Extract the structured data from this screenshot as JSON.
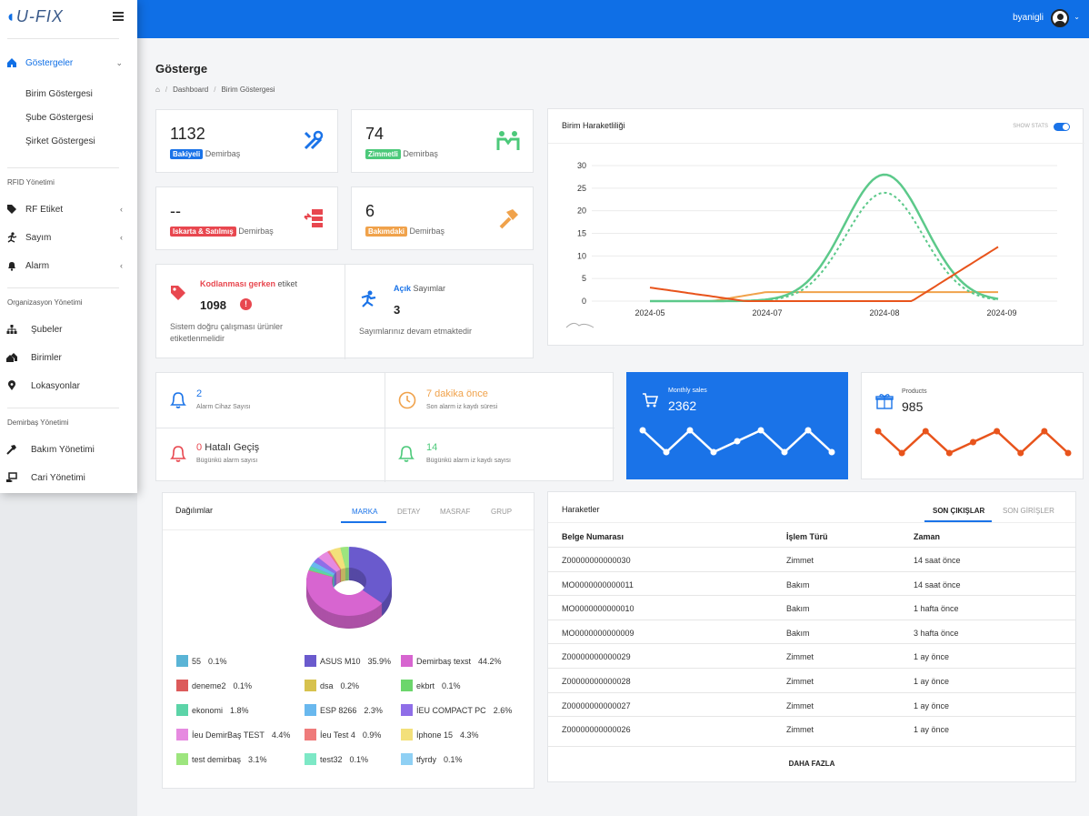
{
  "brand": "U-FIX",
  "user": {
    "name": "byanigli"
  },
  "sidebar": {
    "dashboards_label": "Göstergeler",
    "sub_items": [
      "Birim Göstergesi",
      "Şube Göstergesi",
      "Şirket Göstergesi"
    ],
    "rfid_section": "RFID Yönetimi",
    "rf_etiket": "RF Etiket",
    "sayim": "Sayım",
    "alarm": "Alarm",
    "org_section": "Organizasyon Yönetimi",
    "subeler": "Şubeler",
    "birimler": "Birimler",
    "lokasyonlar": "Lokasyonlar",
    "asset_section": "Demirbaş Yönetimi",
    "bakim": "Bakım Yönetimi",
    "cari": "Cari Yönetimi"
  },
  "page": {
    "title": "Gösterge",
    "breadcrumb": [
      "Dashboard",
      "Birim Göstergesi"
    ]
  },
  "stats": [
    {
      "value": "1132",
      "badge": "Bakiyeli",
      "suffix": "Demirbaş",
      "color": "#1a73e8"
    },
    {
      "value": "74",
      "badge": "Zimmetli",
      "suffix": "Demirbaş",
      "color": "#4cc97a"
    },
    {
      "value": "--",
      "badge": "Iskarta & Satılmış",
      "suffix": "Demirbaş",
      "color": "#e8474f"
    },
    {
      "value": "6",
      "badge": "Bakımdaki",
      "suffix": "Demirbaş",
      "color": "#f0a24b"
    }
  ],
  "kod": {
    "title_a": "Kodlanması gerken",
    "title_b": "etiket",
    "value": "1098",
    "desc": "Sistem doğru çalışması ürünler etiketlenmelidir"
  },
  "sayim": {
    "title_a": "Açık",
    "title_b": "Sayımlar",
    "value": "3",
    "desc": "Sayımlarınız devam etmaktedir"
  },
  "alarms": [
    {
      "value": "2",
      "title": "",
      "desc": "Alarm Cihaz Sayısı"
    },
    {
      "value": "7 dakika önce",
      "title": "",
      "desc": "Son alarm iz kaydı süresi"
    },
    {
      "value": "0",
      "title": "Hatalı Geçiş",
      "desc": "Bügünkü alarm sayısı"
    },
    {
      "value": "14",
      "title": "",
      "desc": "Bügünkü alarm iz kaydı sayısı"
    }
  ],
  "monthly": {
    "label": "Monthly sales",
    "value": "2362",
    "spark": [
      3,
      1,
      3,
      1,
      2,
      3,
      1,
      3,
      1
    ]
  },
  "products": {
    "label": "Products",
    "value": "985",
    "spark": [
      3,
      1,
      3,
      1,
      2,
      3,
      1,
      3,
      1
    ]
  },
  "chart_data": {
    "type": "line",
    "title": "Birim Haraketliliği",
    "toggle_label": "SHOW STATS",
    "x": [
      "2024-05",
      "2024-07",
      "2024-08",
      "2024-09"
    ],
    "ylim": [
      0,
      30
    ],
    "yticks": [
      0,
      5,
      10,
      15,
      20,
      25,
      30
    ],
    "series": [
      {
        "name": "green",
        "color": "#5cc98a",
        "peak": 28
      },
      {
        "name": "green-dotted",
        "color": "#5cc98a",
        "peak": 24
      },
      {
        "name": "red",
        "color": "#e8541c",
        "peak": 12
      },
      {
        "name": "orange",
        "color": "#f0a24b",
        "peak": 2
      }
    ]
  },
  "dist": {
    "title": "Dağılımlar",
    "tabs": [
      "MARKA",
      "DETAY",
      "MASRAF",
      "GRUP"
    ],
    "legend": [
      {
        "name": "55",
        "pct": "0.1%",
        "color": "#5ab4d6"
      },
      {
        "name": "ASUS M10",
        "pct": "35.9%",
        "color": "#6a5acd"
      },
      {
        "name": "Demirbaş texst",
        "pct": "44.2%",
        "color": "#d765d0"
      },
      {
        "name": "deneme2",
        "pct": "0.1%",
        "color": "#dc5b5b"
      },
      {
        "name": "dsa",
        "pct": "0.2%",
        "color": "#d7c24e"
      },
      {
        "name": "ekbrt",
        "pct": "0.1%",
        "color": "#6cd66c"
      },
      {
        "name": "ekonomi",
        "pct": "1.8%",
        "color": "#5cd4a8"
      },
      {
        "name": "ESP 8266",
        "pct": "2.3%",
        "color": "#69b8ee"
      },
      {
        "name": "İEU COMPACT PC",
        "pct": "2.6%",
        "color": "#8f6ee8"
      },
      {
        "name": "İeu DemirBaş TEST",
        "pct": "4.4%",
        "color": "#e68ae0"
      },
      {
        "name": "İeu Test 4",
        "pct": "0.9%",
        "color": "#ef7b7b"
      },
      {
        "name": "İphone 15",
        "pct": "4.3%",
        "color": "#f3e07a"
      },
      {
        "name": "test demirbaş",
        "pct": "3.1%",
        "color": "#9de57e"
      },
      {
        "name": "test32",
        "pct": "0.1%",
        "color": "#7de8c6"
      },
      {
        "name": "tfyrdy",
        "pct": "0.1%",
        "color": "#8fd0f4"
      }
    ]
  },
  "moves": {
    "title": "Haraketler",
    "tabs": [
      "SON ÇIKIŞLAR",
      "SON GİRİŞLER"
    ],
    "headers": [
      "Belge Numarası",
      "İşlem Türü",
      "Zaman"
    ],
    "rows": [
      [
        "Z00000000000030",
        "Zimmet",
        "14 saat önce"
      ],
      [
        "MO0000000000011",
        "Bakım",
        "14 saat önce"
      ],
      [
        "MO0000000000010",
        "Bakım",
        "1 hafta önce"
      ],
      [
        "MO0000000000009",
        "Bakım",
        "3 hafta önce"
      ],
      [
        "Z00000000000029",
        "Zimmet",
        "1 ay önce"
      ],
      [
        "Z00000000000028",
        "Zimmet",
        "1 ay önce"
      ],
      [
        "Z00000000000027",
        "Zimmet",
        "1 ay önce"
      ],
      [
        "Z00000000000026",
        "Zimmet",
        "1 ay önce"
      ]
    ],
    "more": "DAHA FAZLA"
  }
}
